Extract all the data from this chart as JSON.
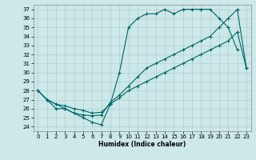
{
  "xlabel": "Humidex (Indice chaleur)",
  "bg_color": "#cce8e8",
  "grid_color": "#b0d0d0",
  "line_color": "#006666",
  "xlim": [
    -0.5,
    23.5
  ],
  "ylim": [
    23.5,
    37.5
  ],
  "yticks": [
    24,
    25,
    26,
    27,
    28,
    29,
    30,
    31,
    32,
    33,
    34,
    35,
    36,
    37
  ],
  "xticks": [
    0,
    1,
    2,
    3,
    4,
    5,
    6,
    7,
    8,
    9,
    10,
    11,
    12,
    13,
    14,
    15,
    16,
    17,
    18,
    19,
    20,
    21,
    22,
    23
  ],
  "curve1_x": [
    0,
    1,
    2,
    3,
    4,
    5,
    6,
    7,
    8,
    9,
    10,
    11,
    12,
    13,
    14,
    15,
    16,
    17,
    18,
    19,
    20,
    21,
    22
  ],
  "curve1_y": [
    28,
    27,
    26,
    26,
    25.5,
    25,
    24.5,
    24.2,
    26.5,
    30,
    35,
    36,
    36.5,
    36.5,
    37,
    36.5,
    37,
    37,
    37,
    37,
    36,
    35,
    32.5
  ],
  "curve2_x": [
    0,
    1,
    2,
    3,
    4,
    5,
    6,
    7,
    8,
    9,
    10,
    11,
    12,
    13,
    14,
    15,
    16,
    17,
    18,
    19,
    20,
    21,
    22,
    23
  ],
  "curve2_y": [
    28,
    27,
    26.5,
    26,
    25.5,
    25.3,
    25.2,
    25.3,
    26.7,
    27.5,
    28.5,
    29.5,
    30.5,
    31,
    31.5,
    32,
    32.5,
    33,
    33.5,
    34,
    35,
    36,
    37,
    30.5
  ],
  "curve3_x": [
    0,
    1,
    2,
    3,
    4,
    5,
    6,
    7,
    8,
    9,
    10,
    11,
    12,
    13,
    14,
    15,
    16,
    17,
    18,
    19,
    20,
    21,
    22,
    23
  ],
  "curve3_y": [
    28,
    27,
    26.5,
    26.3,
    26.0,
    25.8,
    25.5,
    25.6,
    26.5,
    27.2,
    28,
    28.5,
    29,
    29.5,
    30,
    30.5,
    31,
    31.5,
    32,
    32.5,
    33,
    33.5,
    34.5,
    30.5
  ]
}
